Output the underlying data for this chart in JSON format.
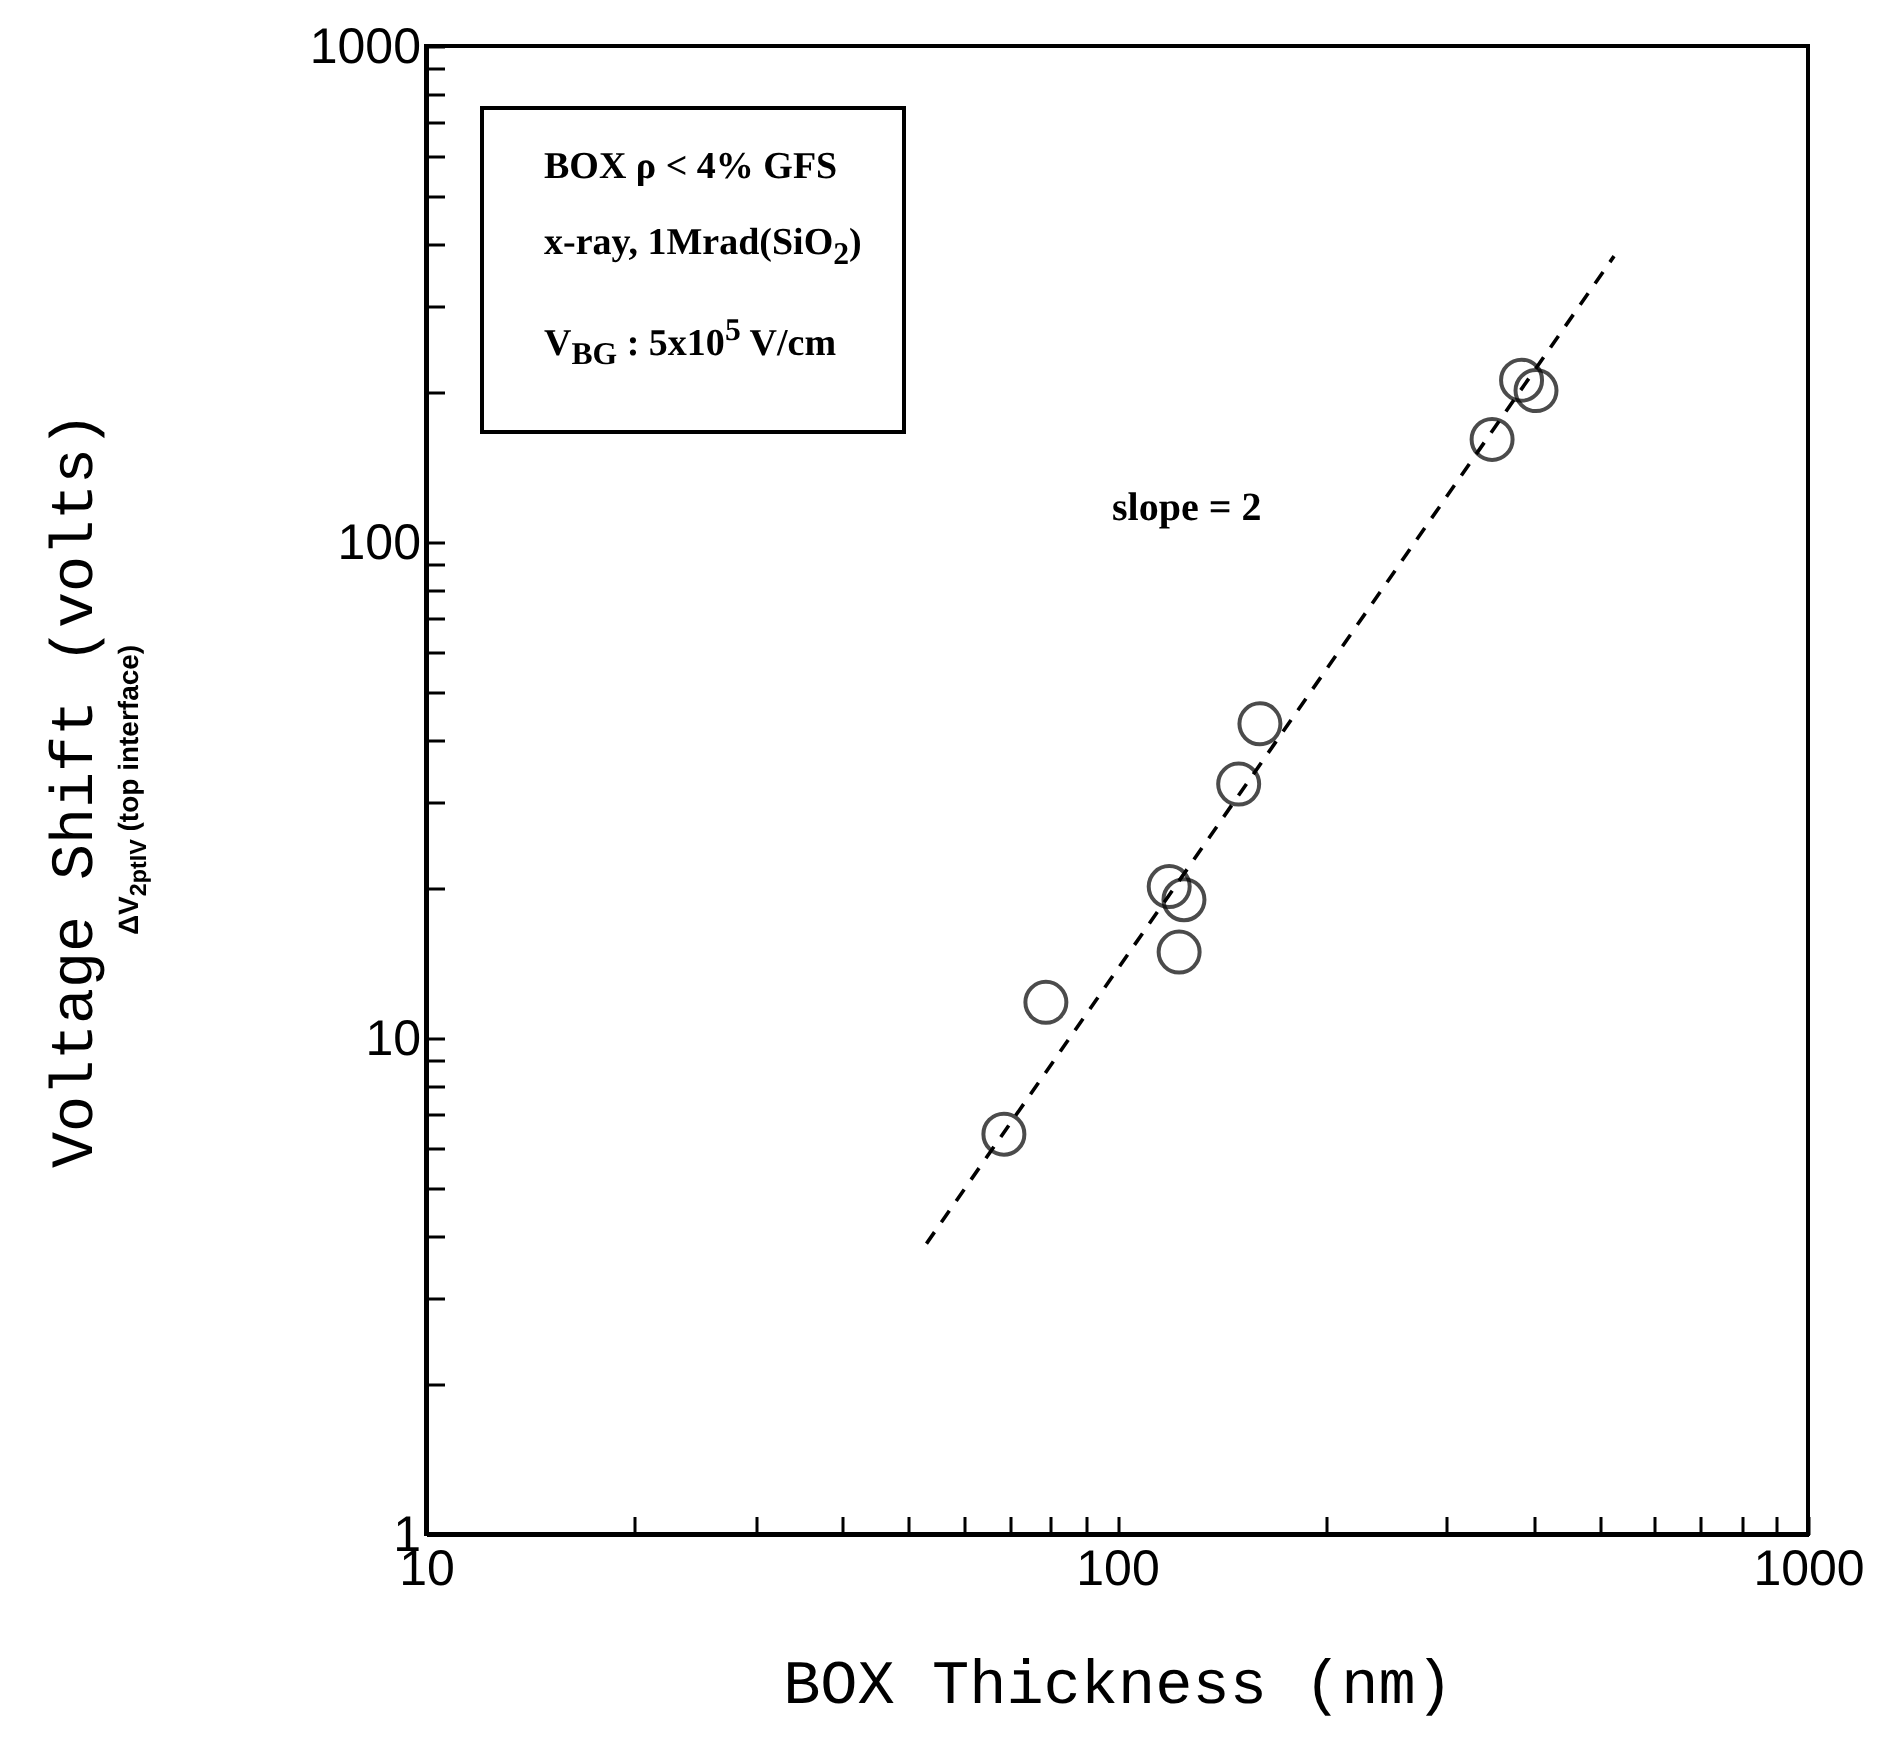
{
  "chart_data": {
    "type": "scatter",
    "xlabel": "BOX Thickness (nm)",
    "ylabel": "Voltage Shift (volts)\nΔV$_{2ptIV}$ (top interface)",
    "log": "xy",
    "xlim": [
      10,
      1000
    ],
    "ylim": [
      1,
      1000
    ],
    "xticks": [
      10,
      {
        "value": 20,
        "label": null
      },
      {
        "value": 30,
        "label": null
      },
      {
        "value": 40,
        "label": null
      },
      {
        "value": 50,
        "label": null
      },
      {
        "value": 60,
        "label": null
      },
      {
        "value": 70,
        "label": null
      },
      {
        "value": 80,
        "label": null
      },
      {
        "value": 90,
        "label": null
      },
      100,
      {
        "value": 200,
        "label": null
      },
      {
        "value": 300,
        "label": null
      },
      {
        "value": 400,
        "label": null
      },
      {
        "value": 500,
        "label": null
      },
      {
        "value": 600,
        "label": null
      },
      {
        "value": 700,
        "label": null
      },
      {
        "value": 800,
        "label": null
      },
      {
        "value": 900,
        "label": null
      },
      1000
    ],
    "yticks": [
      1,
      {
        "value": 2,
        "label": null
      },
      {
        "value": 3,
        "label": null
      },
      {
        "value": 4,
        "label": null
      },
      {
        "value": 5,
        "label": null
      },
      {
        "value": 6,
        "label": null
      },
      {
        "value": 7,
        "label": null
      },
      {
        "value": 8,
        "label": null
      },
      {
        "value": 9,
        "label": null
      },
      10,
      {
        "value": 20,
        "label": null
      },
      {
        "value": 30,
        "label": null
      },
      {
        "value": 40,
        "label": null
      },
      {
        "value": 50,
        "label": null
      },
      {
        "value": 60,
        "label": null
      },
      {
        "value": 70,
        "label": null
      },
      {
        "value": 80,
        "label": null
      },
      {
        "value": 90,
        "label": null
      },
      100,
      {
        "value": 200,
        "label": null
      },
      {
        "value": 300,
        "label": null
      },
      {
        "value": 400,
        "label": null
      },
      {
        "value": 500,
        "label": null
      },
      {
        "value": 600,
        "label": null
      },
      {
        "value": 700,
        "label": null
      },
      {
        "value": 800,
        "label": null
      },
      {
        "value": 900,
        "label": null
      },
      1000
    ],
    "series": [
      {
        "type": "scatter",
        "marker": "circle",
        "color": "#000000",
        "x": [
          68.6,
          78.9,
          119,
          125,
          123,
          150,
          161,
          349,
          385,
          404
        ],
        "values": [
          6.4,
          11.8,
          20.2,
          19.0,
          14.9,
          32.5,
          43,
          161,
          212,
          202
        ]
      },
      {
        "type": "line",
        "line_style": "dashed",
        "marker": "none",
        "color": "#000000",
        "x": [
          53,
          524
        ],
        "values": [
          3.85,
          377
        ]
      }
    ],
    "annotations": [
      "slope = 2",
      "BOX ρ < 4% GFS",
      "x-ray, 1Mrad(SiO$_{2}$)",
      "V$_{BG}$ : 5x10$^{5}$ V/cm"
    ]
  }
}
